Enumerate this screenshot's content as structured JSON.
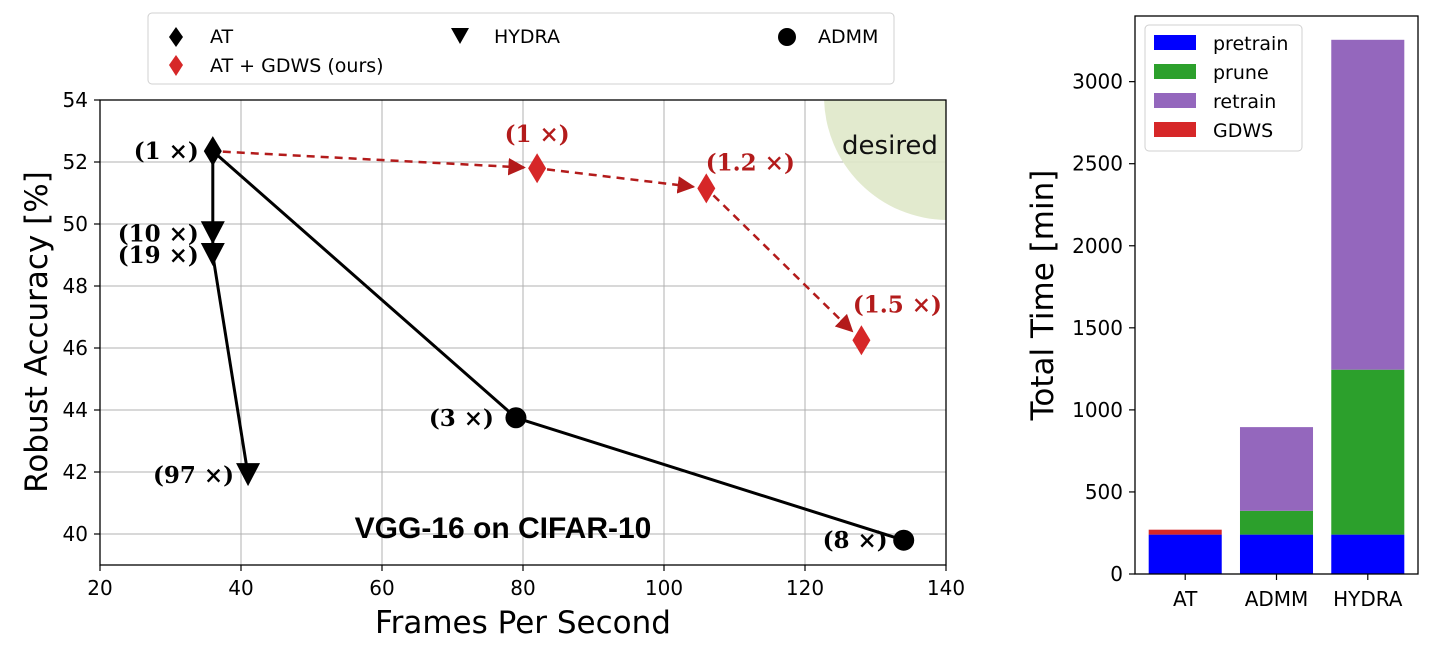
{
  "chart_data": [
    {
      "type": "line",
      "title": "VGG-16 on CIFAR-10",
      "xlabel": "Frames Per Second",
      "ylabel": "Robust Accuracy [%]",
      "xlim": [
        20,
        140
      ],
      "ylim": [
        39,
        54
      ],
      "xticks": [
        20,
        40,
        60,
        80,
        100,
        120,
        140
      ],
      "yticks": [
        40,
        42,
        44,
        46,
        48,
        50,
        52,
        54
      ],
      "grid": true,
      "legend_position": "top",
      "legend": [
        "AT",
        "HYDRA",
        "ADMM",
        "AT + GDWS (ours)"
      ],
      "highlight": {
        "label": "desired",
        "region": "top-right"
      },
      "series": [
        {
          "name": "AT",
          "marker": "diamond",
          "color": "#000000",
          "points": [
            {
              "x": 36,
              "y": 52.35,
              "label": "(1 ×)"
            }
          ]
        },
        {
          "name": "HYDRA",
          "marker": "triangle-down",
          "color": "#000000",
          "points": [
            {
              "x": 36,
              "y": 49.7,
              "label": "(10 ×)"
            },
            {
              "x": 36,
              "y": 49.0,
              "label": "(19 ×)"
            },
            {
              "x": 41,
              "y": 41.9,
              "label": "(97 ×)"
            }
          ]
        },
        {
          "name": "ADMM",
          "marker": "circle",
          "color": "#000000",
          "points": [
            {
              "x": 79,
              "y": 43.75,
              "label": "(3 ×)"
            },
            {
              "x": 134,
              "y": 39.8,
              "label": "(8 ×)"
            }
          ]
        },
        {
          "name": "AT + GDWS (ours)",
          "marker": "diamond",
          "color": "#d62728",
          "points": [
            {
              "x": 82,
              "y": 51.8,
              "label": "(1 ×)"
            },
            {
              "x": 106,
              "y": 51.15,
              "label": "(1.2 ×)"
            },
            {
              "x": 128,
              "y": 46.25,
              "label": "(1.5 ×)"
            }
          ]
        }
      ]
    },
    {
      "type": "bar",
      "stacked": true,
      "title": "",
      "xlabel": "",
      "ylabel": "Total Time [min]",
      "categories": [
        "AT",
        "ADMM",
        "HYDRA"
      ],
      "ylim": [
        0,
        3400
      ],
      "yticks": [
        0,
        500,
        1000,
        1500,
        2000,
        2500,
        3000
      ],
      "legend_position": "top-left",
      "series": [
        {
          "name": "pretrain",
          "color": "#0000ff",
          "values": [
            240,
            240,
            240
          ]
        },
        {
          "name": "prune",
          "color": "#2ca02c",
          "values": [
            0,
            145,
            1005
          ]
        },
        {
          "name": "retrain",
          "color": "#9467bd",
          "values": [
            0,
            510,
            2010
          ]
        },
        {
          "name": "GDWS",
          "color": "#d62728",
          "values": [
            30,
            0,
            0
          ]
        }
      ]
    }
  ]
}
